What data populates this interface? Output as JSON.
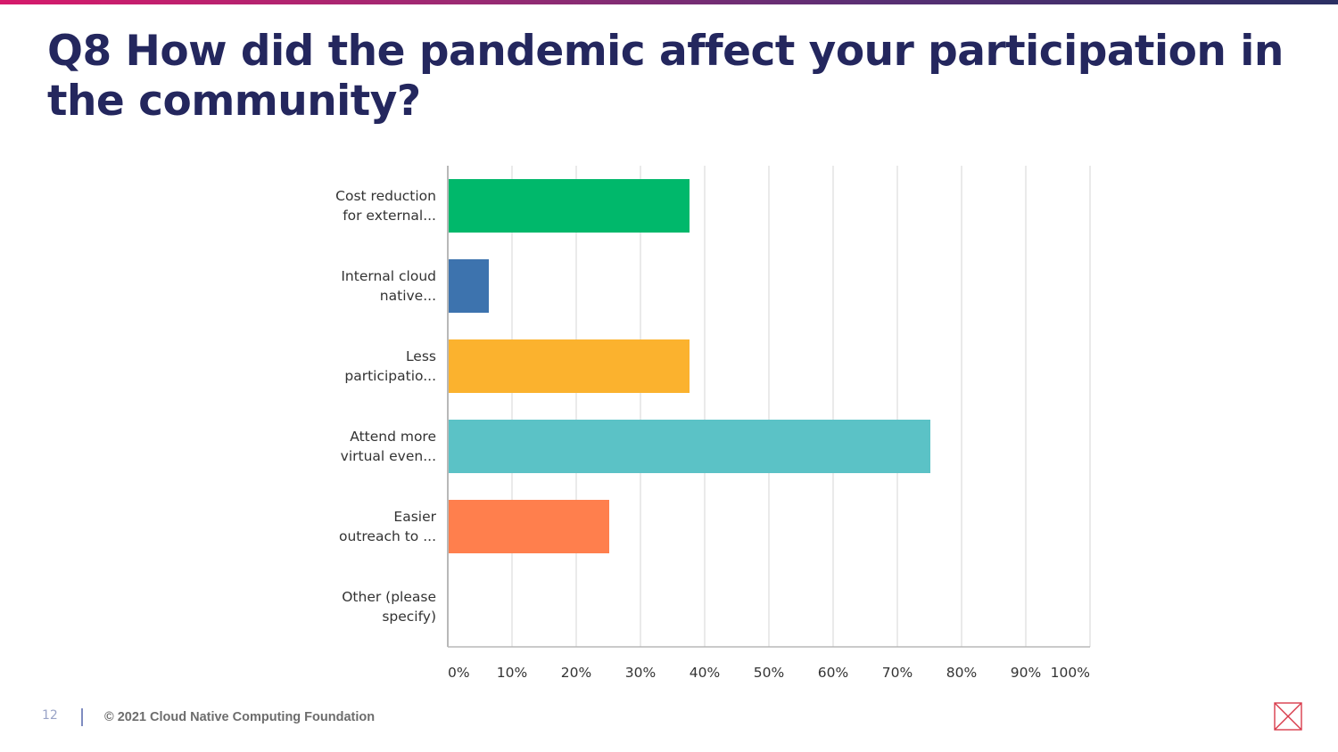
{
  "slide": {
    "title": "Q8 How did the pandemic affect your participation in the community?",
    "page_number": "12",
    "copyright": "© 2021 Cloud Native Computing Foundation"
  },
  "colors": {
    "title": "#24275e",
    "grid": "#e3e3e3",
    "axis": "#b8b8b8"
  },
  "chart_data": {
    "type": "bar",
    "orientation": "horizontal",
    "title": "",
    "xlabel": "",
    "ylabel": "",
    "xlim": [
      0,
      100
    ],
    "grid": true,
    "categories": [
      [
        "Cost reduction",
        "for external..."
      ],
      [
        "Internal cloud",
        "native..."
      ],
      [
        "Less",
        "participatio..."
      ],
      [
        "Attend more",
        "virtual even..."
      ],
      [
        "Easier",
        "outreach to ..."
      ],
      [
        "Other (please",
        "specify)"
      ]
    ],
    "values": [
      37.5,
      6.25,
      37.5,
      75,
      25,
      0
    ],
    "bar_colors": [
      "#00b86b",
      "#3d73ae",
      "#fbb22e",
      "#5bc2c6",
      "#ff7f4d",
      "#a9a9a9"
    ],
    "x_ticks": [
      "0%",
      "10%",
      "20%",
      "30%",
      "40%",
      "50%",
      "60%",
      "70%",
      "80%",
      "90%",
      "100%"
    ]
  }
}
